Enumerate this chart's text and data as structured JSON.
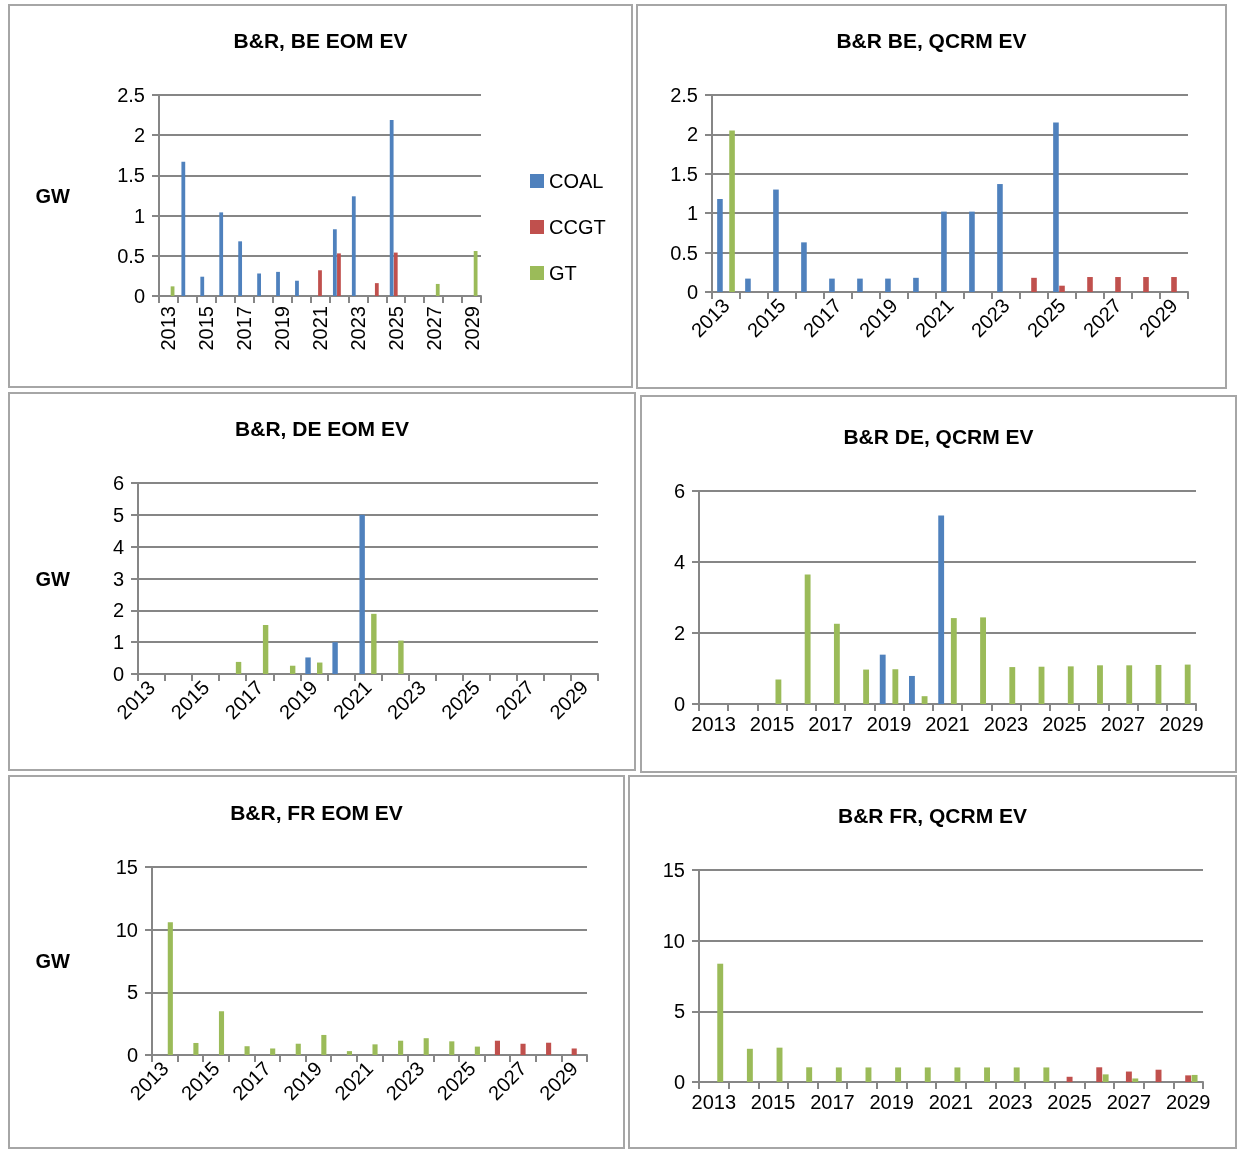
{
  "chart_data": [
    {
      "type": "bar",
      "title": "B&R, BE EOM EV",
      "ylabel": "GW",
      "categories": [
        "2013",
        null,
        "2015",
        null,
        "2017",
        null,
        "2019",
        null,
        "2021",
        null,
        "2023",
        null,
        "2025",
        null,
        "2027",
        null,
        "2029"
      ],
      "ylim": [
        0,
        2.5
      ],
      "yticks": [
        0,
        0.5,
        1,
        1.5,
        2,
        2.5
      ],
      "grid": "y",
      "legend": "right",
      "series": [
        {
          "name": "COAL",
          "color": "#4f81bd",
          "values": [
            null,
            1.67,
            0.24,
            1.04,
            0.68,
            0.28,
            0.3,
            0.19,
            null,
            0.83,
            1.24,
            null,
            2.19,
            null,
            null,
            null,
            null
          ]
        },
        {
          "name": "CCGT",
          "color": "#c0504d",
          "values": [
            null,
            null,
            null,
            null,
            null,
            null,
            null,
            null,
            0.32,
            0.53,
            null,
            0.16,
            0.54,
            null,
            null,
            null,
            null
          ]
        },
        {
          "name": "GT",
          "color": "#9bbb59",
          "values": [
            0.12,
            null,
            null,
            null,
            null,
            null,
            null,
            null,
            null,
            null,
            null,
            null,
            null,
            null,
            0.15,
            null,
            0.56
          ]
        }
      ]
    },
    {
      "type": "bar",
      "title": "B&R BE, QCRM EV",
      "categories": [
        "2013",
        null,
        "2015",
        null,
        "2017",
        null,
        "2019",
        null,
        "2021",
        null,
        "2023",
        null,
        "2025",
        null,
        "2027",
        null,
        "2029"
      ],
      "ylim": [
        0,
        2.5
      ],
      "yticks": [
        0,
        0.5,
        1,
        1.5,
        2,
        2.5
      ],
      "grid": "y",
      "series": [
        {
          "color": "#4f81bd",
          "values": [
            1.18,
            0.17,
            1.3,
            0.63,
            0.17,
            0.17,
            0.17,
            0.18,
            1.02,
            1.02,
            1.37,
            null,
            2.15,
            null,
            null,
            null,
            null
          ]
        },
        {
          "color": "#c0504d",
          "values": [
            null,
            null,
            null,
            null,
            null,
            null,
            null,
            null,
            null,
            null,
            null,
            0.18,
            0.08,
            0.19,
            0.19,
            0.19,
            0.19
          ]
        },
        {
          "color": "#9bbb59",
          "values": [
            2.05,
            null,
            null,
            null,
            null,
            null,
            null,
            null,
            null,
            null,
            null,
            null,
            null,
            null,
            null,
            null,
            null
          ]
        }
      ]
    },
    {
      "type": "bar",
      "title": "B&R, DE EOM EV",
      "ylabel": "GW",
      "categories": [
        "2013",
        null,
        "2015",
        null,
        "2017",
        null,
        "2019",
        null,
        "2021",
        null,
        "2023",
        null,
        "2025",
        null,
        "2027",
        null,
        "2029"
      ],
      "ylim": [
        0,
        6
      ],
      "yticks": [
        0,
        1,
        2,
        3,
        4,
        5,
        6
      ],
      "grid": "y",
      "series": [
        {
          "color": "#4f81bd",
          "values": [
            null,
            null,
            null,
            null,
            null,
            null,
            0.52,
            1.0,
            5.0,
            null,
            null,
            null,
            null,
            null,
            null,
            null,
            null
          ]
        },
        {
          "color": "#c0504d",
          "values": [
            null,
            null,
            null,
            null,
            null,
            null,
            null,
            null,
            null,
            null,
            null,
            null,
            null,
            null,
            null,
            null,
            null
          ]
        },
        {
          "color": "#9bbb59",
          "values": [
            null,
            null,
            null,
            0.38,
            1.54,
            0.26,
            0.36,
            null,
            1.89,
            1.05,
            null,
            null,
            null,
            null,
            null,
            null,
            null
          ]
        }
      ]
    },
    {
      "type": "bar",
      "title": "B&R DE, QCRM EV",
      "categories": [
        "2013",
        null,
        "2015",
        null,
        "2017",
        null,
        "2019",
        null,
        "2021",
        null,
        "2023",
        null,
        "2025",
        null,
        "2027",
        null,
        "2029"
      ],
      "ylim": [
        0,
        6
      ],
      "yticks": [
        0,
        2,
        4,
        6
      ],
      "grid": "y",
      "series": [
        {
          "color": "#4f81bd",
          "values": [
            null,
            null,
            null,
            null,
            null,
            null,
            1.39,
            0.79,
            5.31,
            null,
            null,
            null,
            null,
            null,
            null,
            null,
            null
          ]
        },
        {
          "color": "#c0504d",
          "values": [
            null,
            null,
            null,
            null,
            null,
            null,
            null,
            null,
            null,
            null,
            null,
            null,
            null,
            null,
            null,
            null,
            null
          ]
        },
        {
          "color": "#9bbb59",
          "values": [
            null,
            null,
            0.69,
            3.65,
            2.26,
            0.97,
            0.98,
            0.22,
            2.42,
            2.44,
            1.04,
            1.05,
            1.06,
            1.09,
            1.09,
            1.1,
            1.11
          ]
        }
      ]
    },
    {
      "type": "bar",
      "title": "B&R, FR EOM EV",
      "ylabel": "GW",
      "categories": [
        "2013",
        null,
        "2015",
        null,
        "2017",
        null,
        "2019",
        null,
        "2021",
        null,
        "2023",
        null,
        "2025",
        null,
        "2027",
        null,
        "2029"
      ],
      "ylim": [
        0,
        15
      ],
      "yticks": [
        0,
        5,
        10,
        15
      ],
      "grid": "y",
      "series": [
        {
          "color": "#4f81bd",
          "values": [
            null,
            null,
            null,
            null,
            null,
            null,
            null,
            null,
            null,
            null,
            null,
            null,
            null,
            null,
            null,
            null,
            null
          ]
        },
        {
          "color": "#c0504d",
          "values": [
            null,
            null,
            null,
            null,
            null,
            null,
            null,
            null,
            null,
            null,
            null,
            null,
            null,
            1.14,
            0.9,
            0.98,
            0.52
          ]
        },
        {
          "color": "#9bbb59",
          "values": [
            10.6,
            0.96,
            3.49,
            0.7,
            0.52,
            0.9,
            1.6,
            0.31,
            0.85,
            1.14,
            1.34,
            1.09,
            0.67,
            null,
            null,
            null,
            null
          ]
        }
      ]
    },
    {
      "type": "bar",
      "title": "B&R FR, QCRM EV",
      "categories": [
        "2013",
        null,
        "2015",
        null,
        "2017",
        null,
        "2019",
        null,
        "2021",
        null,
        "2023",
        null,
        "2025",
        null,
        "2027",
        null,
        "2029"
      ],
      "ylim": [
        0,
        15
      ],
      "yticks": [
        0,
        5,
        10,
        15
      ],
      "grid": "y",
      "series": [
        {
          "color": "#4f81bd",
          "values": [
            null,
            null,
            null,
            null,
            null,
            null,
            null,
            null,
            null,
            null,
            null,
            null,
            null,
            null,
            null,
            null,
            null
          ]
        },
        {
          "color": "#c0504d",
          "values": [
            null,
            null,
            null,
            null,
            null,
            null,
            null,
            null,
            null,
            null,
            null,
            null,
            0.37,
            1.04,
            0.74,
            0.87,
            0.47
          ]
        },
        {
          "color": "#9bbb59",
          "values": [
            8.37,
            2.35,
            2.43,
            1.04,
            1.03,
            1.03,
            1.03,
            1.03,
            1.03,
            1.03,
            1.03,
            1.03,
            null,
            0.54,
            0.25,
            null,
            0.5
          ]
        }
      ]
    }
  ]
}
